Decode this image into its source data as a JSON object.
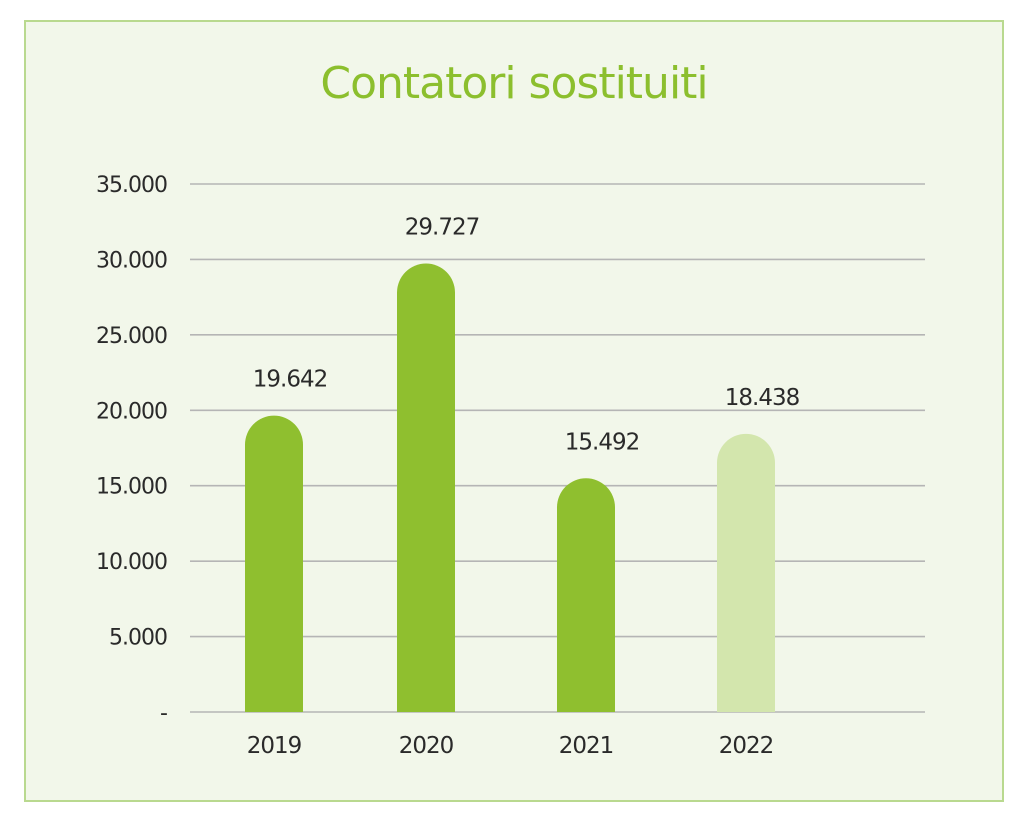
{
  "chart_data": {
    "type": "bar",
    "title": "Contatori sostituiti",
    "categories": [
      "2019",
      "2020",
      "2021",
      "2022"
    ],
    "values": [
      19642,
      29727,
      15492,
      18438
    ],
    "value_labels": [
      "19.642",
      "29.727",
      "15.492",
      "18.438"
    ],
    "ylim": [
      0,
      35000
    ],
    "yticks": [
      0,
      5000,
      10000,
      15000,
      20000,
      25000,
      30000,
      35000
    ],
    "ytick_labels": [
      "-",
      "5.000",
      "10.000",
      "15.000",
      "20.000",
      "25.000",
      "30.000",
      "35.000"
    ],
    "grid": true,
    "legend": "none",
    "bar_colors": [
      "#8fbf2f",
      "#8fbf2f",
      "#8fbf2f",
      "#d3e6ad"
    ]
  },
  "colors": {
    "background": "#f2f7ea",
    "border": "#b9d98f",
    "title": "#8cbf2e",
    "gridline": "#b5b5b5"
  }
}
